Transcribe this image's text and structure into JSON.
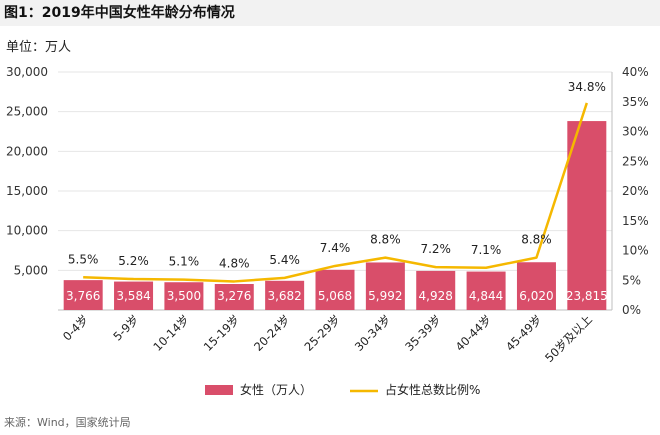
{
  "title": "图1：2019年中国女性年龄分布情况",
  "unit_label": "单位：万人",
  "source": "来源：Wind，国家统计局",
  "colors": {
    "bar": "#d94e6a",
    "line": "#f5b800",
    "grid": "#e6e6e6"
  },
  "chart_data": {
    "type": "bar",
    "categories": [
      "0-4岁",
      "5-9岁",
      "10-14岁",
      "15-19岁",
      "20-24岁",
      "25-29岁",
      "30-34岁",
      "35-39岁",
      "40-44岁",
      "45-49岁",
      "50岁及以上"
    ],
    "series": [
      {
        "name": "女性（万人）",
        "type": "bar",
        "axis": "left",
        "values": [
          3766,
          3584,
          3500,
          3276,
          3682,
          5068,
          5992,
          4928,
          4844,
          6020,
          23815
        ],
        "labels": [
          "3,766",
          "3,584",
          "3,500",
          "3,276",
          "3,682",
          "5,068",
          "5,992",
          "4,928",
          "4,844",
          "6,020",
          "23,815"
        ]
      },
      {
        "name": "占女性总数比例%",
        "type": "line",
        "axis": "right",
        "values": [
          5.5,
          5.2,
          5.1,
          4.8,
          5.4,
          7.4,
          8.8,
          7.2,
          7.1,
          8.8,
          34.8
        ],
        "labels": [
          "5.5%",
          "5.2%",
          "5.1%",
          "4.8%",
          "5.4%",
          "7.4%",
          "8.8%",
          "7.2%",
          "7.1%",
          "8.8%",
          "34.8%"
        ]
      }
    ],
    "y_left": {
      "min": 0,
      "max": 30000,
      "ticks": [
        5000,
        10000,
        15000,
        20000,
        25000,
        30000
      ],
      "tick_labels": [
        "5,000",
        "10,000",
        "15,000",
        "20,000",
        "25,000",
        "30,000"
      ]
    },
    "y_right": {
      "min": 0,
      "max": 40,
      "ticks": [
        0,
        5,
        10,
        15,
        20,
        25,
        30,
        35,
        40
      ],
      "tick_labels": [
        "0%",
        "5%",
        "10%",
        "15%",
        "20%",
        "25%",
        "30%",
        "35%",
        "40%"
      ]
    },
    "grid": true,
    "legend_position": "bottom"
  }
}
